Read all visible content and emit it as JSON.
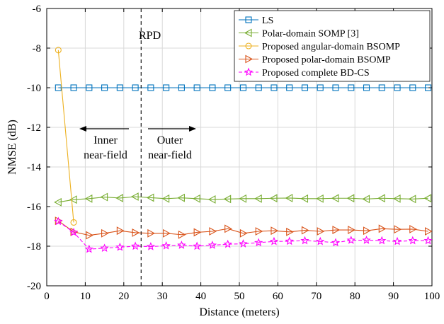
{
  "chart_data": {
    "type": "line",
    "xlabel": "Distance (meters)",
    "ylabel": "NMSE (dB)",
    "xlim": [
      0,
      100
    ],
    "ylim": [
      -20,
      -6
    ],
    "xticks": [
      "0",
      "10",
      "20",
      "30",
      "40",
      "50",
      "60",
      "70",
      "80",
      "90",
      "100"
    ],
    "yticks": [
      "-20",
      "-18",
      "-16",
      "-14",
      "-12",
      "-10",
      "-8",
      "-6"
    ],
    "grid": true,
    "legend_position": "top-right",
    "annotations": {
      "rpd_label": "RPD",
      "rpd_x": 24.5,
      "inner_line1": "Inner",
      "inner_line2": "near-field",
      "outer_line1": "Outer",
      "outer_line2": "near-field"
    },
    "x": [
      3,
      7,
      11,
      15,
      19,
      23,
      27,
      31,
      35,
      39,
      43,
      47,
      51,
      55,
      59,
      63,
      67,
      71,
      75,
      79,
      83,
      87,
      91,
      95,
      99
    ],
    "series": [
      {
        "name": "LS",
        "color": "#0072BD",
        "marker": "square",
        "dashed": false,
        "x": [
          3,
          7,
          11,
          15,
          19,
          23,
          27,
          31,
          35,
          39,
          43,
          47,
          51,
          55,
          59,
          63,
          67,
          71,
          75,
          79,
          83,
          87,
          91,
          95,
          99
        ],
        "values": [
          -10,
          -10,
          -10,
          -10,
          -10,
          -10,
          -10,
          -10,
          -10,
          -10,
          -10,
          -10,
          -10,
          -10,
          -10,
          -10,
          -10,
          -10,
          -10,
          -10,
          -10,
          -10,
          -10,
          -10,
          -10
        ]
      },
      {
        "name": "Polar-domain SOMP [3]",
        "color": "#77AC30",
        "marker": "triangle-left",
        "dashed": false,
        "x": [
          3,
          7,
          11,
          15,
          19,
          23,
          27,
          31,
          35,
          39,
          43,
          47,
          51,
          55,
          59,
          63,
          67,
          71,
          75,
          79,
          83,
          87,
          91,
          95,
          99
        ],
        "values": [
          -15.78,
          -15.65,
          -15.6,
          -15.52,
          -15.57,
          -15.5,
          -15.55,
          -15.6,
          -15.56,
          -15.6,
          -15.64,
          -15.62,
          -15.6,
          -15.6,
          -15.58,
          -15.57,
          -15.6,
          -15.6,
          -15.58,
          -15.58,
          -15.62,
          -15.58,
          -15.6,
          -15.62,
          -15.58
        ]
      },
      {
        "name": "Proposed angular-domain BSOMP",
        "color": "#EDB120",
        "marker": "circle",
        "dashed": false,
        "x": [
          3,
          7
        ],
        "values": [
          -8.1,
          -16.8
        ]
      },
      {
        "name": "Proposed polar-domain BSOMP",
        "color": "#D95319",
        "marker": "triangle-right",
        "dashed": false,
        "x": [
          3,
          7,
          11,
          15,
          19,
          23,
          27,
          31,
          35,
          39,
          43,
          47,
          51,
          55,
          59,
          63,
          67,
          71,
          75,
          79,
          83,
          87,
          91,
          95,
          99
        ],
        "values": [
          -16.72,
          -17.28,
          -17.45,
          -17.35,
          -17.22,
          -17.32,
          -17.35,
          -17.35,
          -17.42,
          -17.3,
          -17.25,
          -17.12,
          -17.35,
          -17.25,
          -17.22,
          -17.28,
          -17.2,
          -17.25,
          -17.18,
          -17.18,
          -17.22,
          -17.12,
          -17.15,
          -17.14,
          -17.25
        ]
      },
      {
        "name": "Proposed complete BD-CS",
        "color": "#FF00FF",
        "marker": "star",
        "dashed": true,
        "x": [
          3,
          7,
          11,
          15,
          19,
          23,
          27,
          31,
          35,
          39,
          43,
          47,
          51,
          55,
          59,
          63,
          67,
          71,
          75,
          79,
          83,
          87,
          91,
          95,
          99
        ],
        "values": [
          -16.75,
          -17.3,
          -18.15,
          -18.1,
          -18.05,
          -18.0,
          -18.02,
          -17.98,
          -17.95,
          -18.0,
          -17.95,
          -17.9,
          -17.88,
          -17.82,
          -17.76,
          -17.75,
          -17.72,
          -17.76,
          -17.82,
          -17.7,
          -17.7,
          -17.72,
          -17.76,
          -17.72,
          -17.72
        ]
      }
    ]
  }
}
